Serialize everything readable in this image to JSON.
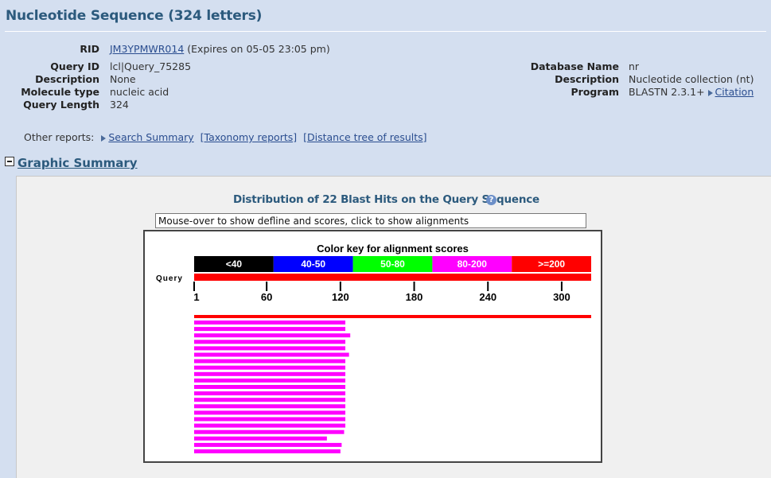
{
  "header": {
    "title": "Nucleotide Sequence (324 letters)"
  },
  "info_left": {
    "rid_label": "RID",
    "rid_value": "JM3YPMWR014",
    "rid_expiry": "(Expires on 05-05 23:05 pm)",
    "query_id_label": "Query ID",
    "query_id_value": "lcl|Query_75285",
    "description_label": "Description",
    "description_value": "None",
    "molecule_type_label": "Molecule type",
    "molecule_type_value": "nucleic acid",
    "query_length_label": "Query Length",
    "query_length_value": "324"
  },
  "info_right": {
    "database_name_label": "Database Name",
    "database_name_value": "nr",
    "description_label": "Description",
    "description_value": "Nucleotide collection (nt)",
    "program_label": "Program",
    "program_value": "BLASTN 2.3.1+",
    "citation_link": "Citation"
  },
  "other_reports": {
    "label": "Other reports:",
    "search_summary": "Search Summary",
    "taxonomy": "[Taxonomy reports]",
    "distance_tree": "[Distance tree of results]"
  },
  "graphic_summary": {
    "title": "Graphic Summary",
    "distribution_title": "Distribution of 22 Blast Hits on the Query Sequence",
    "help_icon": "?",
    "mouseover_text": "Mouse-over to show defline and scores, click to show alignments"
  },
  "chart_data": {
    "type": "bar",
    "title": "Color key for alignment scores",
    "query_label": "Query",
    "query_length": 324,
    "color_key": [
      {
        "label": "<40",
        "color": "#000000"
      },
      {
        "label": "40-50",
        "color": "#0000ff"
      },
      {
        "label": "50-80",
        "color": "#00ff00"
      },
      {
        "label": "80-200",
        "color": "#ff00ff"
      },
      {
        "label": ">=200",
        "color": "#ff0000"
      }
    ],
    "ticks": [
      1,
      60,
      120,
      180,
      240,
      300
    ],
    "xlim": [
      1,
      324
    ],
    "hits": [
      {
        "start": 1,
        "end": 324,
        "color": "#ff0000"
      },
      {
        "start": 1,
        "end": 124,
        "color": "#ff00ff"
      },
      {
        "start": 1,
        "end": 124,
        "color": "#ff00ff"
      },
      {
        "start": 1,
        "end": 128,
        "color": "#ff00ff"
      },
      {
        "start": 1,
        "end": 124,
        "color": "#ff00ff"
      },
      {
        "start": 1,
        "end": 124,
        "color": "#ff00ff"
      },
      {
        "start": 1,
        "end": 127,
        "color": "#ff00ff"
      },
      {
        "start": 1,
        "end": 124,
        "color": "#ff00ff"
      },
      {
        "start": 1,
        "end": 124,
        "color": "#ff00ff"
      },
      {
        "start": 1,
        "end": 124,
        "color": "#ff00ff"
      },
      {
        "start": 1,
        "end": 124,
        "color": "#ff00ff"
      },
      {
        "start": 1,
        "end": 124,
        "color": "#ff00ff"
      },
      {
        "start": 1,
        "end": 124,
        "color": "#ff00ff"
      },
      {
        "start": 1,
        "end": 124,
        "color": "#ff00ff"
      },
      {
        "start": 1,
        "end": 124,
        "color": "#ff00ff"
      },
      {
        "start": 1,
        "end": 124,
        "color": "#ff00ff"
      },
      {
        "start": 1,
        "end": 124,
        "color": "#ff00ff"
      },
      {
        "start": 1,
        "end": 124,
        "color": "#ff00ff"
      },
      {
        "start": 1,
        "end": 123,
        "color": "#ff00ff"
      },
      {
        "start": 1,
        "end": 109,
        "color": "#ff00ff"
      },
      {
        "start": 1,
        "end": 121,
        "color": "#ff00ff"
      },
      {
        "start": 1,
        "end": 120,
        "color": "#ff00ff"
      }
    ]
  }
}
